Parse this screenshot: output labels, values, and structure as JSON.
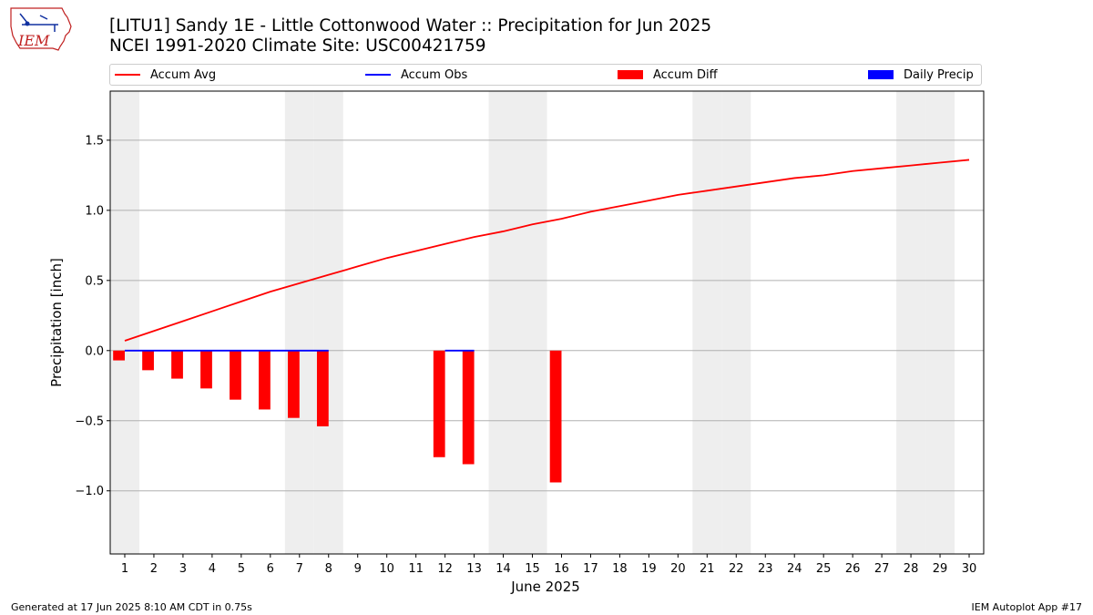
{
  "header": {
    "title_line1": "[LITU1] Sandy 1E - Little Cottonwood Water :: Precipitation for Jun 2025",
    "title_line2": "NCEI 1991-2020 Climate Site: USC00421759",
    "logo_text": "IEM"
  },
  "footer": {
    "generated": "Generated at 17 Jun 2025 8:10 AM CDT in 0.75s",
    "app": "IEM Autoplot App #17"
  },
  "colors": {
    "avg": "#ff0000",
    "obs": "#0000ff",
    "diff": "#ff0000",
    "daily": "#0000ff",
    "weekend_shade": "#eeeeee",
    "grid": "#b0b0b0"
  },
  "chart_data": {
    "type": "bar",
    "xlabel": "June 2025",
    "ylabel": "Precipitation [inch]",
    "ylim": [
      -1.45,
      1.85
    ],
    "xlim": [
      0.5,
      30.5
    ],
    "yticks": [
      -1.0,
      -0.5,
      0.0,
      0.5,
      1.0,
      1.5
    ],
    "ytick_labels": [
      "−1.0",
      "−0.5",
      "0.0",
      "0.5",
      "1.0",
      "1.5"
    ],
    "grid": "horizontal",
    "legend_position": "top",
    "days": [
      1,
      2,
      3,
      4,
      5,
      6,
      7,
      8,
      9,
      10,
      11,
      12,
      13,
      14,
      15,
      16,
      17,
      18,
      19,
      20,
      21,
      22,
      23,
      24,
      25,
      26,
      27,
      28,
      29,
      30
    ],
    "weekend_days": [
      1,
      7,
      8,
      14,
      15,
      21,
      22,
      28,
      29
    ],
    "series": [
      {
        "name": "Accum Avg",
        "kind": "line",
        "x": [
          1,
          2,
          3,
          4,
          5,
          6,
          7,
          8,
          9,
          10,
          11,
          12,
          13,
          14,
          15,
          16,
          17,
          18,
          19,
          20,
          21,
          22,
          23,
          24,
          25,
          26,
          27,
          28,
          29,
          30
        ],
        "values": [
          0.07,
          0.14,
          0.21,
          0.28,
          0.35,
          0.42,
          0.48,
          0.54,
          0.6,
          0.66,
          0.71,
          0.76,
          0.81,
          0.85,
          0.9,
          0.94,
          0.99,
          1.03,
          1.07,
          1.11,
          1.14,
          1.17,
          1.2,
          1.23,
          1.25,
          1.28,
          1.3,
          1.32,
          1.34,
          1.36
        ]
      },
      {
        "name": "Accum Obs",
        "kind": "line",
        "x": [
          1,
          2,
          3,
          4,
          5,
          6,
          7,
          8,
          12,
          13
        ],
        "values": [
          0,
          0,
          0,
          0,
          0,
          0,
          0,
          0,
          0,
          0
        ]
      },
      {
        "name": "Accum Diff",
        "kind": "bar",
        "x": [
          1,
          2,
          3,
          4,
          5,
          6,
          7,
          8,
          12,
          13,
          16
        ],
        "values": [
          -0.07,
          -0.14,
          -0.2,
          -0.27,
          -0.35,
          -0.42,
          -0.48,
          -0.54,
          -0.76,
          -0.81,
          -0.94
        ]
      },
      {
        "name": "Daily Precip",
        "kind": "bar",
        "x": [],
        "values": []
      }
    ]
  }
}
